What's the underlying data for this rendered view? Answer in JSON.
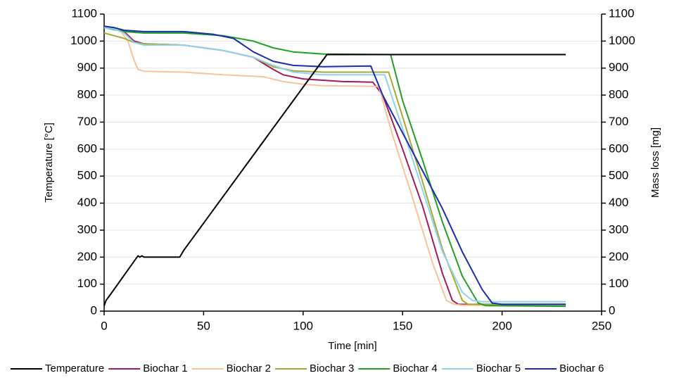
{
  "chart_data": {
    "type": "line",
    "xlabel": "Time [min]",
    "ylabel": "Temperature [°C]",
    "y2label": "Mass loss [mg]",
    "xlim": [
      0,
      250
    ],
    "xticks": [
      0,
      50,
      100,
      150,
      200,
      250
    ],
    "ylim": [
      0,
      1100
    ],
    "yticks": [
      0,
      100,
      200,
      300,
      400,
      500,
      600,
      700,
      800,
      900,
      1000,
      1100
    ],
    "y2lim": [
      0,
      1100
    ],
    "y2ticks": [
      0,
      100,
      200,
      300,
      400,
      500,
      600,
      700,
      800,
      900,
      1000,
      1100
    ],
    "grid": true,
    "legend": "bottom",
    "series": [
      {
        "name": "Temperature",
        "color": "#000000",
        "axis": "y",
        "x": [
          0,
          1,
          3,
          17,
          18,
          19,
          20,
          38,
          40,
          112,
          232
        ],
        "values": [
          20,
          40,
          60,
          205,
          200,
          205,
          200,
          200,
          225,
          950,
          950
        ]
      },
      {
        "name": "Biochar 1",
        "color": "#a3195b",
        "axis": "y2",
        "x": [
          0,
          5,
          10,
          15,
          20,
          40,
          60,
          75,
          85,
          90,
          100,
          120,
          135,
          140,
          150,
          160,
          170,
          175,
          178,
          232
        ],
        "values": [
          1055,
          1050,
          1035,
          1000,
          990,
          985,
          965,
          940,
          895,
          875,
          860,
          850,
          848,
          800,
          600,
          390,
          140,
          40,
          25,
          25
        ]
      },
      {
        "name": "Biochar 2",
        "color": "#f9c39a",
        "axis": "y2",
        "x": [
          0,
          8,
          12,
          15,
          17,
          20,
          40,
          60,
          80,
          90,
          100,
          110,
          138,
          145,
          155,
          165,
          172,
          176,
          180,
          232
        ],
        "values": [
          1050,
          1040,
          1000,
          930,
          895,
          888,
          885,
          875,
          868,
          850,
          840,
          835,
          832,
          650,
          420,
          180,
          40,
          25,
          22,
          22
        ]
      },
      {
        "name": "Biochar 3",
        "color": "#a6a832",
        "axis": "y2",
        "x": [
          0,
          5,
          10,
          15,
          20,
          40,
          60,
          75,
          85,
          95,
          110,
          143,
          150,
          160,
          170,
          180,
          183,
          232
        ],
        "values": [
          1030,
          1020,
          1010,
          995,
          990,
          985,
          965,
          940,
          905,
          890,
          885,
          885,
          720,
          480,
          230,
          40,
          25,
          25
        ]
      },
      {
        "name": "Biochar 4",
        "color": "#22a022",
        "axis": "y2",
        "x": [
          0,
          10,
          20,
          40,
          60,
          75,
          85,
          95,
          110,
          144,
          150,
          160,
          170,
          180,
          188,
          192,
          232
        ],
        "values": [
          1050,
          1035,
          1030,
          1030,
          1020,
          1000,
          975,
          960,
          952,
          950,
          780,
          560,
          330,
          130,
          30,
          20,
          18
        ]
      },
      {
        "name": "Biochar 5",
        "color": "#8fd3f4",
        "axis": "y2",
        "x": [
          0,
          5,
          10,
          15,
          20,
          40,
          60,
          75,
          85,
          95,
          110,
          141,
          148,
          160,
          170,
          180,
          185,
          190,
          232
        ],
        "values": [
          1050,
          1045,
          1030,
          995,
          985,
          985,
          965,
          940,
          910,
          885,
          875,
          875,
          720,
          450,
          220,
          70,
          40,
          35,
          35
        ]
      },
      {
        "name": "Biochar 6",
        "color": "#1a2db0",
        "axis": "y2",
        "x": [
          0,
          5,
          10,
          20,
          40,
          55,
          65,
          75,
          85,
          95,
          110,
          134,
          140,
          150,
          160,
          170,
          180,
          190,
          195,
          200,
          232
        ],
        "values": [
          1055,
          1050,
          1040,
          1035,
          1035,
          1025,
          1010,
          960,
          925,
          910,
          905,
          908,
          800,
          660,
          520,
          380,
          220,
          80,
          30,
          25,
          25
        ]
      }
    ]
  }
}
